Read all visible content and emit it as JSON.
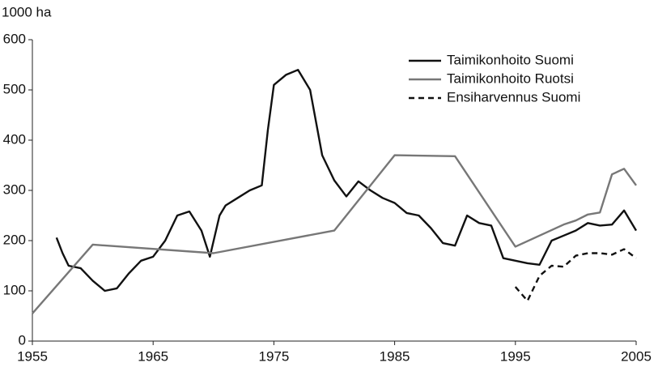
{
  "chart_data": {
    "type": "line",
    "y_label": "1000 ha",
    "xlim": [
      1955,
      2005
    ],
    "xticks": [
      1955,
      1965,
      1975,
      1985,
      1995,
      2005
    ],
    "ylim": [
      0,
      600
    ],
    "yticks": [
      0,
      100,
      200,
      300,
      400,
      500,
      600
    ],
    "grid": false,
    "legend": "top-right",
    "series": [
      {
        "name": "Taimikonhoito Suomi",
        "color": "#111111",
        "line_style": "solid",
        "x": [
          1957,
          1957.5,
          1958,
          1959,
          1960,
          1961,
          1962,
          1963,
          1964,
          1965,
          1966,
          1967,
          1968,
          1969,
          1969.7,
          1970.5,
          1971,
          1972,
          1973,
          1974,
          1974.5,
          1975,
          1976,
          1977,
          1978,
          1979,
          1980,
          1981,
          1982,
          1983,
          1984,
          1985,
          1986,
          1987,
          1988,
          1989,
          1990,
          1991,
          1992,
          1993,
          1994,
          1995,
          1996,
          1997,
          1998,
          1999,
          2000,
          2001,
          2002,
          2003,
          2004,
          2005
        ],
        "values": [
          206,
          175,
          150,
          145,
          120,
          100,
          105,
          135,
          160,
          168,
          200,
          250,
          258,
          220,
          168,
          250,
          270,
          285,
          300,
          310,
          420,
          510,
          530,
          540,
          500,
          370,
          320,
          288,
          318,
          300,
          285,
          275,
          255,
          250,
          225,
          195,
          190,
          250,
          235,
          230,
          165,
          160,
          155,
          152,
          200,
          210,
          220,
          235,
          230,
          232,
          260,
          220
        ]
      },
      {
        "name": "Taimikonhoito Ruotsi",
        "color": "#777777",
        "line_style": "solid",
        "x": [
          1955,
          1960,
          1970,
          1980,
          1985,
          1990,
          1995,
          1999,
          2000,
          2001,
          2002,
          2003,
          2004,
          2005
        ],
        "values": [
          55,
          192,
          175,
          220,
          370,
          368,
          188,
          232,
          240,
          252,
          256,
          332,
          343,
          310
        ]
      },
      {
        "name": "Ensiharvennus Suomi",
        "color": "#111111",
        "line_style": "dashed",
        "x": [
          1995,
          1996,
          1997,
          1998,
          1999,
          2000,
          2001,
          2002,
          2003,
          2004,
          2005
        ],
        "values": [
          108,
          80,
          130,
          150,
          148,
          170,
          175,
          175,
          172,
          183,
          165
        ]
      }
    ]
  }
}
